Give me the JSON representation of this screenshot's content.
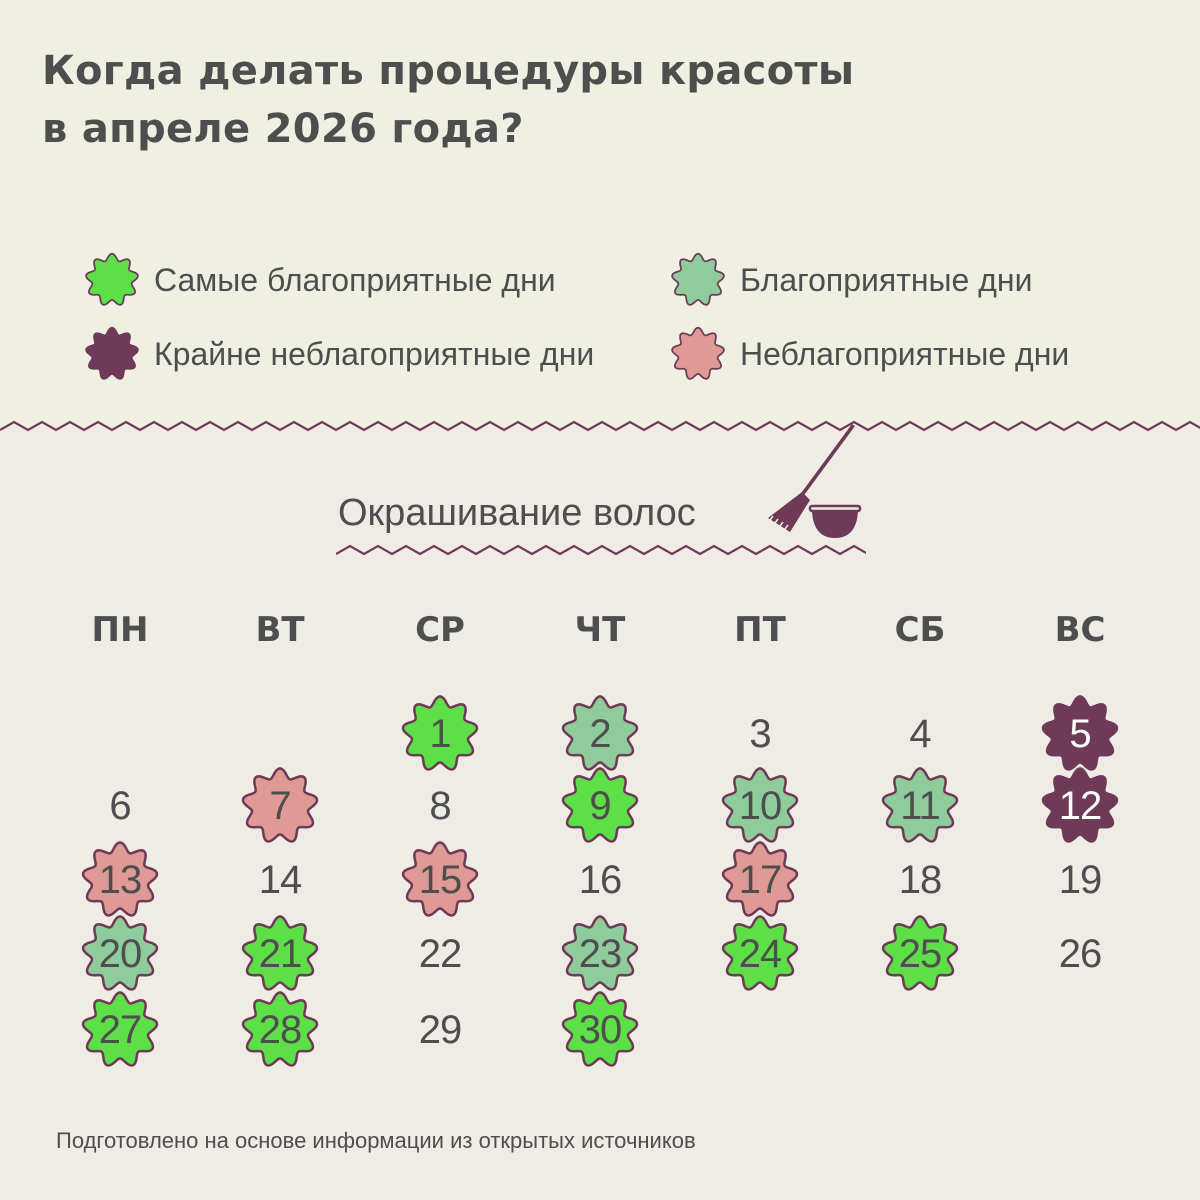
{
  "title": {
    "line1": "Когда делать процедуры красоты",
    "line2": "в апреле 2026 года?"
  },
  "colors": {
    "best": "#5ddf47",
    "good": "#8fcc9c",
    "bad": "#df9a96",
    "extreme": "#6e3a57",
    "outline": "#6e3a57",
    "top_bg": "#f0f0e2",
    "bottom_bg": "#efece5",
    "text": "#4e4e4e"
  },
  "legend": {
    "best": {
      "label": "Самые благоприятные дни",
      "icon": "flower-badge-icon"
    },
    "good": {
      "label": "Благоприятные дни",
      "icon": "flower-badge-icon"
    },
    "extreme": {
      "label": "Крайне неблагоприятные дни",
      "icon": "flower-badge-icon"
    },
    "bad": {
      "label": "Неблагоприятные дни",
      "icon": "flower-badge-icon"
    }
  },
  "section": {
    "title": "Окрашивание волос",
    "icon": "hair-dye-brush-and-bowl-icon"
  },
  "calendar": {
    "month": "апрель 2026",
    "weekdays": [
      "ПН",
      "ВТ",
      "СР",
      "ЧТ",
      "ПТ",
      "СБ",
      "ВС"
    ],
    "first_weekday_index": 2,
    "days": [
      {
        "d": "1",
        "s": "best"
      },
      {
        "d": "2",
        "s": "good"
      },
      {
        "d": "3",
        "s": "neutral"
      },
      {
        "d": "4",
        "s": "neutral"
      },
      {
        "d": "5",
        "s": "extreme"
      },
      {
        "d": "6",
        "s": "neutral"
      },
      {
        "d": "7",
        "s": "bad"
      },
      {
        "d": "8",
        "s": "neutral"
      },
      {
        "d": "9",
        "s": "best"
      },
      {
        "d": "10",
        "s": "good"
      },
      {
        "d": "11",
        "s": "good"
      },
      {
        "d": "12",
        "s": "extreme"
      },
      {
        "d": "13",
        "s": "bad"
      },
      {
        "d": "14",
        "s": "neutral"
      },
      {
        "d": "15",
        "s": "bad"
      },
      {
        "d": "16",
        "s": "neutral"
      },
      {
        "d": "17",
        "s": "bad"
      },
      {
        "d": "18",
        "s": "neutral"
      },
      {
        "d": "19",
        "s": "neutral"
      },
      {
        "d": "20",
        "s": "good"
      },
      {
        "d": "21",
        "s": "best"
      },
      {
        "d": "22",
        "s": "neutral"
      },
      {
        "d": "23",
        "s": "good"
      },
      {
        "d": "24",
        "s": "best"
      },
      {
        "d": "25",
        "s": "best"
      },
      {
        "d": "26",
        "s": "neutral"
      },
      {
        "d": "27",
        "s": "best"
      },
      {
        "d": "28",
        "s": "best"
      },
      {
        "d": "29",
        "s": "neutral"
      },
      {
        "d": "30",
        "s": "best"
      }
    ]
  },
  "footer": "Подготовлено на основе информации из открытых источников"
}
